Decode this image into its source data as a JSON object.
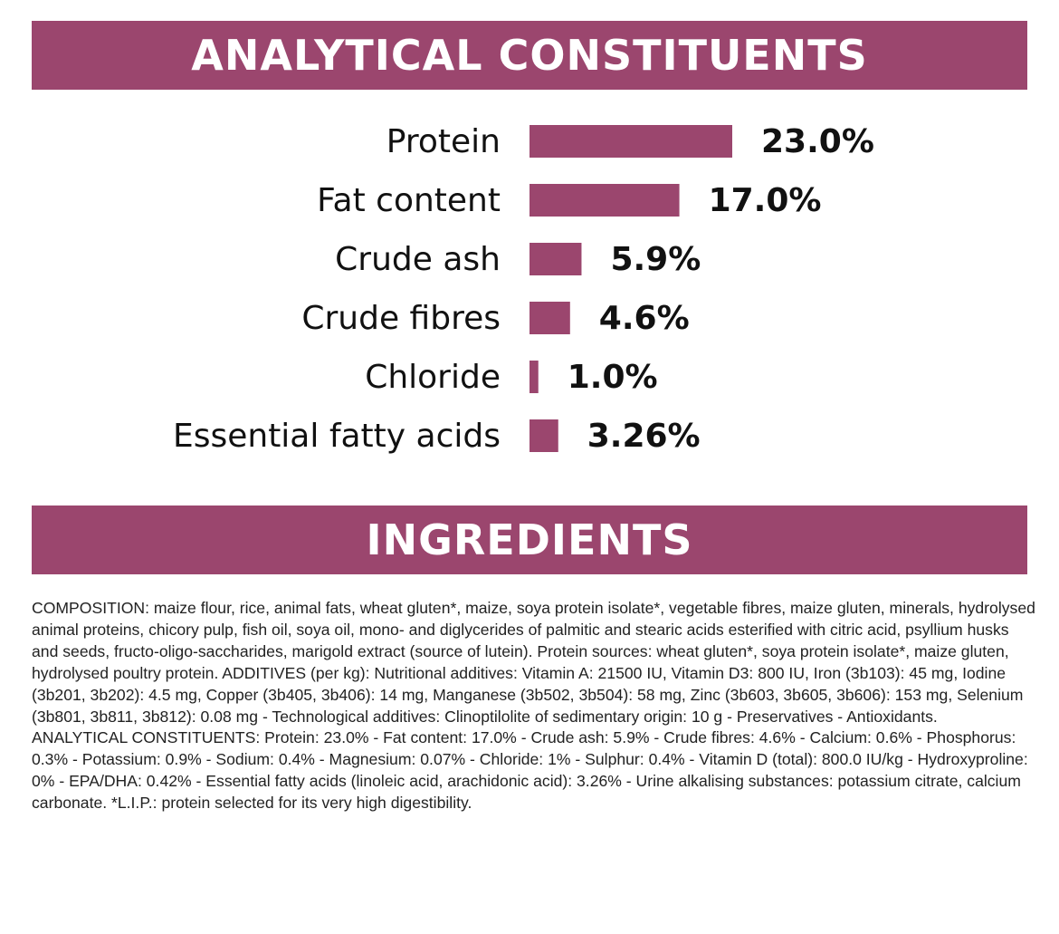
{
  "sections": {
    "analytical_title": "ANALYTICAL CONSTITUENTS",
    "ingredients_title": "INGREDIENTS"
  },
  "colors": {
    "accent": "#9b466e"
  },
  "chart_data": {
    "type": "bar",
    "orientation": "horizontal",
    "categories": [
      "Protein",
      "Fat content",
      "Crude ash",
      "Crude fibres",
      "Chloride",
      "Essential fatty acids"
    ],
    "values": [
      23.0,
      17.0,
      5.9,
      4.6,
      1.0,
      3.26
    ],
    "value_labels": [
      "23.0%",
      "17.0%",
      "5.9%",
      "4.6%",
      "1.0%",
      "3.26%"
    ],
    "unit": "%",
    "xlim": [
      0,
      23.0
    ],
    "grid": false,
    "bar_color": "#9b466e"
  },
  "ingredients": {
    "text": "COMPOSITION: maize flour, rice, animal fats, wheat gluten*, maize, soya protein isolate*, vegetable fibres, maize gluten, minerals, hydrolysed animal proteins, chicory pulp, fish oil, soya oil, mono- and diglycerides of palmitic and stearic acids esterified with citric acid, psyllium husks and seeds, fructo-oligo-saccharides, marigold extract (source of lutein). Protein sources: wheat gluten*, soya protein isolate*, maize gluten, hydrolysed poultry protein. ADDITIVES (per kg): Nutritional additives: Vitamin A: 21500 IU, Vitamin D3: 800 IU, Iron (3b103): 45 mg, Iodine (3b201, 3b202): 4.5 mg, Copper (3b405, 3b406): 14 mg, Manganese (3b502, 3b504): 58 mg, Zinc (3b603, 3b605, 3b606): 153 mg, Selenium (3b801, 3b811, 3b812): 0.08 mg - Technological additives: Clinoptilolite of sedimentary origin: 10 g - Preservatives - Antioxidants. ANALYTICAL CONSTITUENTS: Protein: 23.0% - Fat content: 17.0% - Crude ash: 5.9% - Crude fibres: 4.6% - Calcium: 0.6% - Phosphorus: 0.3% - Potassium: 0.9% - Sodium: 0.4% - Magnesium: 0.07% - Chloride: 1% - Sulphur: 0.4% - Vitamin D (total): 800.0 IU/kg - Hydroxyproline: 0% - EPA/DHA: 0.42% - Essential fatty acids (linoleic acid, arachidonic acid): 3.26% - Urine alkalising substances: potassium citrate, calcium carbonate. *L.I.P.: protein selected for its very high digestibility."
  }
}
